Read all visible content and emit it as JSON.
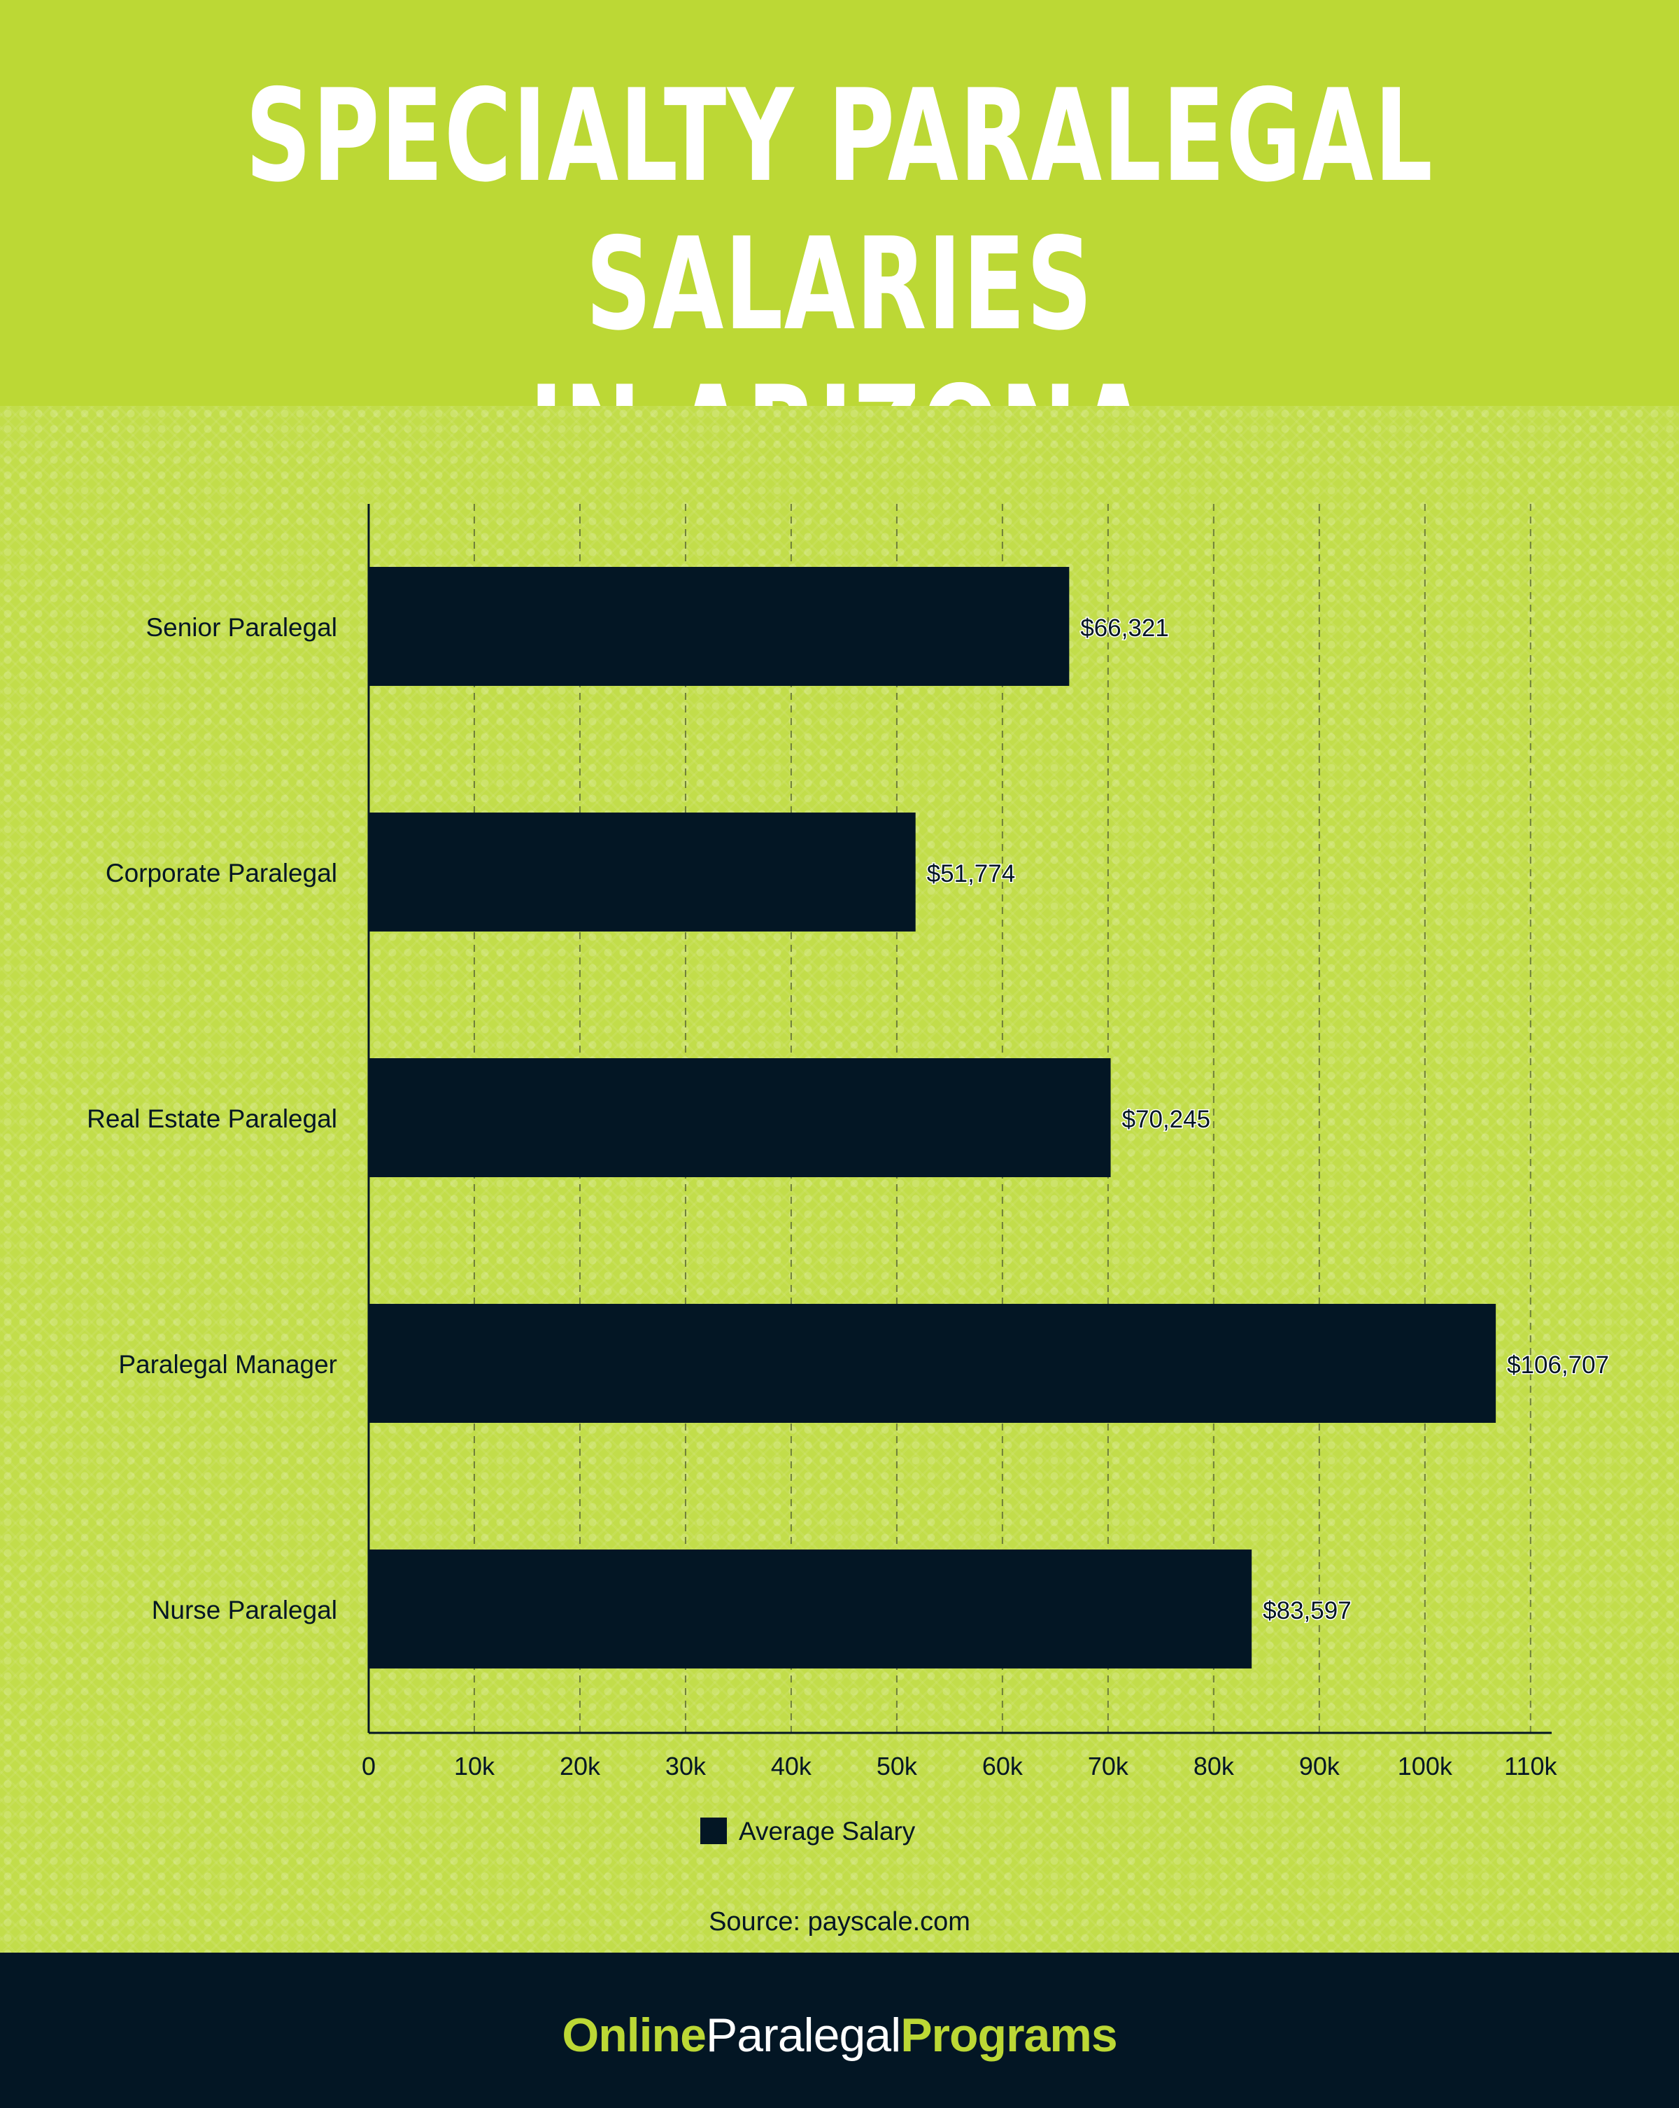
{
  "header": {
    "title": "SPECIALTY PARALEGAL SALARIES\nIN  ARIZONA"
  },
  "chart_data": {
    "type": "bar",
    "orientation": "horizontal",
    "categories": [
      "Senior Paralegal",
      "Corporate Paralegal",
      "Real Estate Paralegal",
      "Paralegal Manager",
      "Nurse Paralegal"
    ],
    "series": [
      {
        "name": "Average Salary",
        "values": [
          66321,
          51774,
          70245,
          106707,
          83597
        ],
        "labels": [
          "$66,321",
          "$51,774",
          "$70,245",
          "$106,707",
          "$83,597"
        ],
        "color": "#031624"
      }
    ],
    "x_ticks": [
      {
        "value": 0,
        "label": "0"
      },
      {
        "value": 10000,
        "label": "10k"
      },
      {
        "value": 20000,
        "label": "20k"
      },
      {
        "value": 30000,
        "label": "30k"
      },
      {
        "value": 40000,
        "label": "40k"
      },
      {
        "value": 50000,
        "label": "50k"
      },
      {
        "value": 60000,
        "label": "60k"
      },
      {
        "value": 70000,
        "label": "70k"
      },
      {
        "value": 80000,
        "label": "80k"
      },
      {
        "value": 90000,
        "label": "90k"
      },
      {
        "value": 100000,
        "label": "100k"
      },
      {
        "value": 110000,
        "label": "110k"
      }
    ],
    "xlim": [
      0,
      112000
    ],
    "grid": "vertical dashed",
    "legend": "bottom-center",
    "source": "Source: payscale.com"
  },
  "footer": {
    "brand_part1": "Online",
    "brand_part2": "Paralegal",
    "brand_part3": "Programs"
  },
  "colors": {
    "accent": "#bcd835",
    "dark": "#031624",
    "text_white": "#ffffff"
  }
}
